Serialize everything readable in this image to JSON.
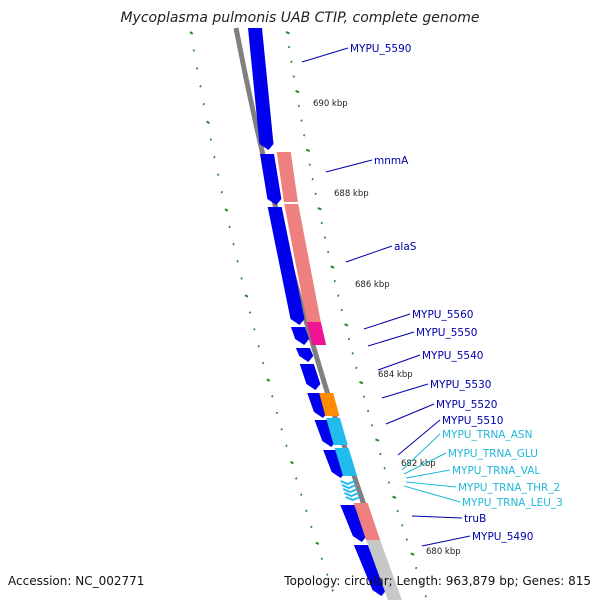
{
  "title": "Mycoplasma pulmonis UAB CTIP, complete genome",
  "footer": {
    "accession": "Accession: NC_002771",
    "summary": "Topology: circular; Length: 963,879 bp; Genes: 815"
  },
  "colors": {
    "cds": "#0000ee",
    "rrna_like": "#ee8080",
    "magenta": "#ee1493",
    "orange": "#ff8c00",
    "trna": "#22bbee",
    "gray_feature": "#c8c8c8",
    "backbone": "#808080",
    "ticks": "#228822",
    "label_blue": "#0000aa",
    "label_cyan": "#20b8d8"
  },
  "ticks": [
    "690 kbp",
    "688 kbp",
    "686 kbp",
    "684 kbp",
    "682 kbp",
    "680 kbp"
  ],
  "gene_labels": [
    "MYPU_5590",
    "mnmA",
    "alaS",
    "MYPU_5560",
    "MYPU_5550",
    "MYPU_5540",
    "MYPU_5530",
    "MYPU_5520",
    "MYPU_5510",
    "MYPU_TRNA_ASN",
    "MYPU_TRNA_GLU",
    "MYPU_TRNA_VAL",
    "MYPU_TRNA_THR_2",
    "MYPU_TRNA_LEU_3",
    "truB",
    "MYPU_5490"
  ]
}
